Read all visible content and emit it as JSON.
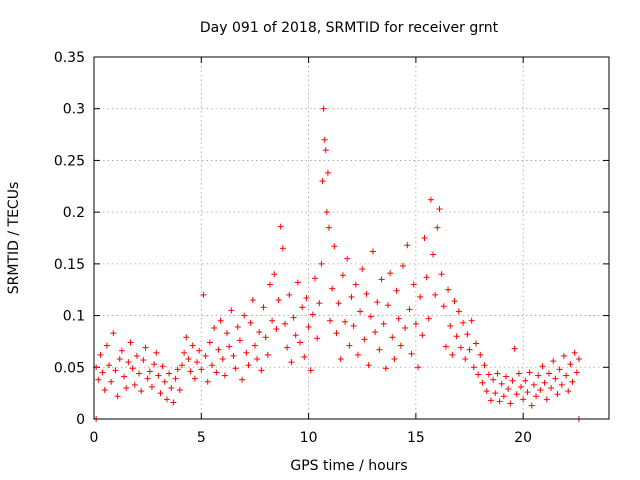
{
  "chart_data": {
    "type": "scatter",
    "title": "Day 091 of 2018, SRMTID for receiver grnt",
    "xlabel": "GPS time / hours",
    "ylabel": "SRMTID / TECUs",
    "xlim": [
      0,
      24
    ],
    "ylim": [
      0,
      0.35
    ],
    "xticks": [
      0,
      5,
      10,
      15,
      20
    ],
    "xtick_labels": [
      "0",
      "5",
      "10",
      "15",
      "20"
    ],
    "yticks": [
      0,
      0.05,
      0.1,
      0.15,
      0.2,
      0.25,
      0.3,
      0.35
    ],
    "ytick_labels": [
      "0",
      "0.05",
      "0.1",
      "0.15",
      "0.2",
      "0.25",
      "0.3",
      "0.35"
    ],
    "grid": true,
    "marker": "+",
    "color": "#ff0000",
    "series": [
      {
        "name": "SRMTID",
        "points": [
          [
            0.1,
            0.0
          ],
          [
            22.6,
            0.0
          ],
          [
            0.1,
            0.05
          ],
          [
            0.2,
            0.038
          ],
          [
            0.3,
            0.062
          ],
          [
            0.4,
            0.045
          ],
          [
            0.5,
            0.028
          ],
          [
            0.6,
            0.071
          ],
          [
            0.7,
            0.052
          ],
          [
            0.8,
            0.036
          ],
          [
            0.9,
            0.083
          ],
          [
            1.0,
            0.047
          ],
          [
            1.1,
            0.022
          ],
          [
            1.2,
            0.058
          ],
          [
            1.3,
            0.066
          ],
          [
            1.4,
            0.041
          ],
          [
            1.5,
            0.03
          ],
          [
            1.6,
            0.055
          ],
          [
            1.7,
            0.074
          ],
          [
            1.8,
            0.049
          ],
          [
            1.9,
            0.033
          ],
          [
            2.0,
            0.061
          ],
          [
            2.1,
            0.044
          ],
          [
            2.2,
            0.027
          ],
          [
            2.3,
            0.057
          ],
          [
            2.4,
            0.069
          ],
          [
            2.5,
            0.039
          ],
          [
            2.6,
            0.046
          ],
          [
            2.7,
            0.031
          ],
          [
            2.8,
            0.053
          ],
          [
            2.9,
            0.064
          ],
          [
            3.0,
            0.042
          ],
          [
            3.1,
            0.025
          ],
          [
            3.2,
            0.051
          ],
          [
            3.3,
            0.036
          ],
          [
            3.4,
            0.019
          ],
          [
            3.5,
            0.044
          ],
          [
            3.6,
            0.03
          ],
          [
            3.7,
            0.016
          ],
          [
            3.8,
            0.039
          ],
          [
            3.9,
            0.048
          ],
          [
            4.0,
            0.028
          ],
          [
            4.1,
            0.052
          ],
          [
            4.2,
            0.064
          ],
          [
            4.3,
            0.079
          ],
          [
            4.4,
            0.058
          ],
          [
            4.5,
            0.046
          ],
          [
            4.6,
            0.071
          ],
          [
            4.7,
            0.039
          ],
          [
            4.8,
            0.055
          ],
          [
            4.9,
            0.066
          ],
          [
            5.0,
            0.048
          ],
          [
            5.1,
            0.12
          ],
          [
            5.2,
            0.061
          ],
          [
            5.3,
            0.036
          ],
          [
            5.4,
            0.074
          ],
          [
            5.5,
            0.052
          ],
          [
            5.6,
            0.088
          ],
          [
            5.7,
            0.045
          ],
          [
            5.8,
            0.067
          ],
          [
            5.9,
            0.095
          ],
          [
            6.0,
            0.058
          ],
          [
            6.1,
            0.042
          ],
          [
            6.2,
            0.083
          ],
          [
            6.3,
            0.07
          ],
          [
            6.4,
            0.105
          ],
          [
            6.5,
            0.061
          ],
          [
            6.6,
            0.049
          ],
          [
            6.7,
            0.089
          ],
          [
            6.8,
            0.076
          ],
          [
            6.9,
            0.038
          ],
          [
            7.0,
            0.1
          ],
          [
            7.1,
            0.064
          ],
          [
            7.2,
            0.052
          ],
          [
            7.3,
            0.093
          ],
          [
            7.4,
            0.115
          ],
          [
            7.5,
            0.071
          ],
          [
            7.6,
            0.058
          ],
          [
            7.7,
            0.084
          ],
          [
            7.8,
            0.047
          ],
          [
            7.9,
            0.108
          ],
          [
            8.0,
            0.079
          ],
          [
            8.1,
            0.062
          ],
          [
            8.2,
            0.13
          ],
          [
            8.3,
            0.095
          ],
          [
            8.4,
            0.14
          ],
          [
            8.5,
            0.087
          ],
          [
            8.6,
            0.115
          ],
          [
            8.7,
            0.186
          ],
          [
            8.8,
            0.165
          ],
          [
            8.9,
            0.092
          ],
          [
            9.0,
            0.069
          ],
          [
            9.1,
            0.12
          ],
          [
            9.2,
            0.055
          ],
          [
            9.3,
            0.098
          ],
          [
            9.4,
            0.081
          ],
          [
            9.5,
            0.132
          ],
          [
            9.6,
            0.074
          ],
          [
            9.7,
            0.108
          ],
          [
            9.8,
            0.06
          ],
          [
            9.9,
            0.117
          ],
          [
            10.0,
            0.089
          ],
          [
            10.1,
            0.047
          ],
          [
            10.2,
            0.101
          ],
          [
            10.3,
            0.136
          ],
          [
            10.4,
            0.078
          ],
          [
            10.5,
            0.112
          ],
          [
            10.6,
            0.15
          ],
          [
            10.65,
            0.23
          ],
          [
            10.7,
            0.3
          ],
          [
            10.75,
            0.27
          ],
          [
            10.8,
            0.26
          ],
          [
            10.85,
            0.2
          ],
          [
            10.9,
            0.238
          ],
          [
            10.95,
            0.185
          ],
          [
            11.0,
            0.095
          ],
          [
            11.1,
            0.126
          ],
          [
            11.2,
            0.167
          ],
          [
            11.3,
            0.083
          ],
          [
            11.4,
            0.112
          ],
          [
            11.5,
            0.058
          ],
          [
            11.6,
            0.139
          ],
          [
            11.7,
            0.094
          ],
          [
            11.8,
            0.155
          ],
          [
            11.9,
            0.071
          ],
          [
            12.0,
            0.118
          ],
          [
            12.1,
            0.09
          ],
          [
            12.2,
            0.13
          ],
          [
            12.3,
            0.062
          ],
          [
            12.4,
            0.104
          ],
          [
            12.5,
            0.145
          ],
          [
            12.6,
            0.077
          ],
          [
            12.7,
            0.121
          ],
          [
            12.8,
            0.052
          ],
          [
            12.9,
            0.099
          ],
          [
            13.0,
            0.162
          ],
          [
            13.1,
            0.084
          ],
          [
            13.2,
            0.113
          ],
          [
            13.3,
            0.067
          ],
          [
            13.4,
            0.135
          ],
          [
            13.5,
            0.092
          ],
          [
            13.6,
            0.049
          ],
          [
            13.7,
            0.11
          ],
          [
            13.8,
            0.141
          ],
          [
            13.9,
            0.079
          ],
          [
            14.0,
            0.058
          ],
          [
            14.1,
            0.124
          ],
          [
            14.2,
            0.097
          ],
          [
            14.3,
            0.071
          ],
          [
            14.4,
            0.148
          ],
          [
            14.5,
            0.088
          ],
          [
            14.6,
            0.168
          ],
          [
            14.7,
            0.106
          ],
          [
            14.8,
            0.063
          ],
          [
            14.9,
            0.13
          ],
          [
            15.0,
            0.092
          ],
          [
            15.1,
            0.05
          ],
          [
            15.2,
            0.118
          ],
          [
            15.3,
            0.081
          ],
          [
            15.4,
            0.175
          ],
          [
            15.5,
            0.137
          ],
          [
            15.6,
            0.097
          ],
          [
            15.7,
            0.212
          ],
          [
            15.8,
            0.159
          ],
          [
            15.9,
            0.12
          ],
          [
            16.0,
            0.185
          ],
          [
            16.1,
            0.203
          ],
          [
            16.2,
            0.14
          ],
          [
            16.3,
            0.109
          ],
          [
            16.4,
            0.07
          ],
          [
            16.5,
            0.125
          ],
          [
            16.6,
            0.09
          ],
          [
            16.7,
            0.062
          ],
          [
            16.8,
            0.114
          ],
          [
            16.9,
            0.08
          ],
          [
            17.0,
            0.104
          ],
          [
            17.1,
            0.069
          ],
          [
            17.2,
            0.093
          ],
          [
            17.3,
            0.058
          ],
          [
            17.4,
            0.082
          ],
          [
            17.5,
            0.067
          ],
          [
            17.6,
            0.095
          ],
          [
            17.7,
            0.05
          ],
          [
            17.8,
            0.073
          ],
          [
            17.9,
            0.043
          ],
          [
            18.0,
            0.062
          ],
          [
            18.1,
            0.035
          ],
          [
            18.2,
            0.052
          ],
          [
            18.3,
            0.027
          ],
          [
            18.4,
            0.043
          ],
          [
            18.5,
            0.018
          ],
          [
            18.6,
            0.038
          ],
          [
            18.7,
            0.025
          ],
          [
            18.8,
            0.044
          ],
          [
            18.9,
            0.017
          ],
          [
            19.0,
            0.034
          ],
          [
            19.1,
            0.022
          ],
          [
            19.2,
            0.041
          ],
          [
            19.3,
            0.029
          ],
          [
            19.4,
            0.015
          ],
          [
            19.5,
            0.037
          ],
          [
            19.6,
            0.068
          ],
          [
            19.7,
            0.024
          ],
          [
            19.8,
            0.044
          ],
          [
            19.9,
            0.031
          ],
          [
            20.0,
            0.019
          ],
          [
            20.1,
            0.037
          ],
          [
            20.2,
            0.026
          ],
          [
            20.3,
            0.045
          ],
          [
            20.4,
            0.013
          ],
          [
            20.5,
            0.033
          ],
          [
            20.6,
            0.022
          ],
          [
            20.7,
            0.042
          ],
          [
            20.8,
            0.028
          ],
          [
            20.9,
            0.051
          ],
          [
            21.0,
            0.035
          ],
          [
            21.1,
            0.019
          ],
          [
            21.2,
            0.044
          ],
          [
            21.3,
            0.03
          ],
          [
            21.4,
            0.056
          ],
          [
            21.5,
            0.039
          ],
          [
            21.6,
            0.024
          ],
          [
            21.7,
            0.048
          ],
          [
            21.8,
            0.033
          ],
          [
            21.9,
            0.061
          ],
          [
            22.0,
            0.042
          ],
          [
            22.1,
            0.027
          ],
          [
            22.2,
            0.053
          ],
          [
            22.3,
            0.036
          ],
          [
            22.4,
            0.064
          ],
          [
            22.5,
            0.045
          ],
          [
            22.6,
            0.058
          ]
        ]
      }
    ]
  }
}
